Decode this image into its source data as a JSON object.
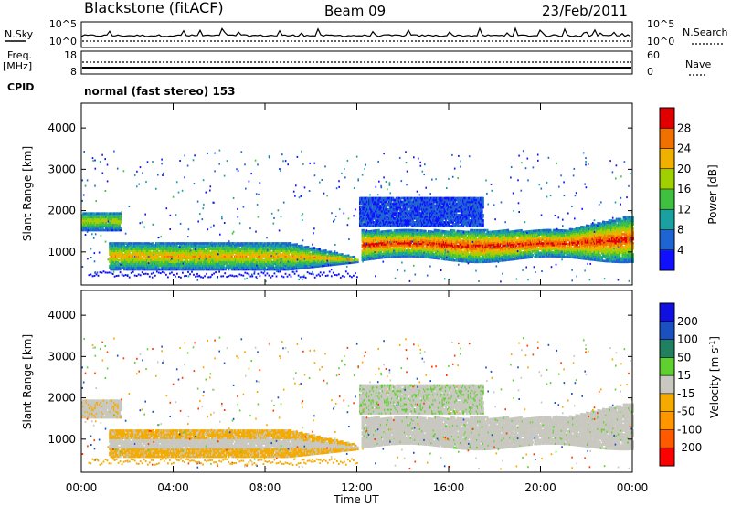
{
  "header": {
    "station": "Blackstone (fitACF)",
    "beam": "Beam 09",
    "date": "23/Feb/2011"
  },
  "sky_panel": {
    "left_label": "N.Sky",
    "right_label": "N.Search",
    "left_ticks": [
      "10^5",
      "10^0"
    ],
    "right_ticks": [
      "10^5",
      "10^0"
    ]
  },
  "freq_panel": {
    "left_label_1": "Freq.",
    "left_label_2": "[MHz]",
    "right_label": "Nave",
    "left_ticks": [
      "18",
      "8"
    ],
    "right_ticks": [
      "60",
      "0"
    ]
  },
  "cpid": {
    "label": "CPID",
    "value": "normal (fast stereo) 153"
  },
  "chart_data": [
    {
      "type": "heatmap",
      "title": "",
      "xlabel": "",
      "ylabel": "Slant Range [km]",
      "yticks": [
        "1000",
        "2000",
        "3000",
        "4000"
      ],
      "ylim": [
        200,
        4600
      ],
      "xlim": [
        "00:00",
        "24:00"
      ],
      "colorbar": {
        "label": "Power [dB]",
        "ticks": [
          "4",
          "8",
          "12",
          "16",
          "20",
          "24",
          "28"
        ],
        "range": [
          0,
          32
        ],
        "colors": [
          "#1010ff",
          "#1e64d2",
          "#1aa0a0",
          "#40c040",
          "#a0d000",
          "#f0b000",
          "#f07000",
          "#e00000"
        ]
      },
      "description": "Ionospheric backscatter power vs slant range and UT"
    },
    {
      "type": "heatmap",
      "title": "",
      "xlabel": "Time UT",
      "ylabel": "Slant Range [km]",
      "yticks": [
        "1000",
        "2000",
        "3000",
        "4000"
      ],
      "ylim": [
        200,
        4600
      ],
      "xlim": [
        "00:00",
        "24:00"
      ],
      "xticks": [
        "00:00",
        "04:00",
        "08:00",
        "12:00",
        "16:00",
        "20:00",
        "00:00"
      ],
      "colorbar": {
        "label": "Velocity [m s^-1]",
        "ticks": [
          "200",
          "100",
          "50",
          "15",
          "-15",
          "-50",
          "-100",
          "-200"
        ],
        "range": [
          -250,
          250
        ],
        "colors": [
          "#ff0000",
          "#ff5a00",
          "#ff9600",
          "#f5aa00",
          "#c8c8c0",
          "#60d030",
          "#208060",
          "#1a50c0",
          "#1010e0"
        ]
      }
    }
  ]
}
